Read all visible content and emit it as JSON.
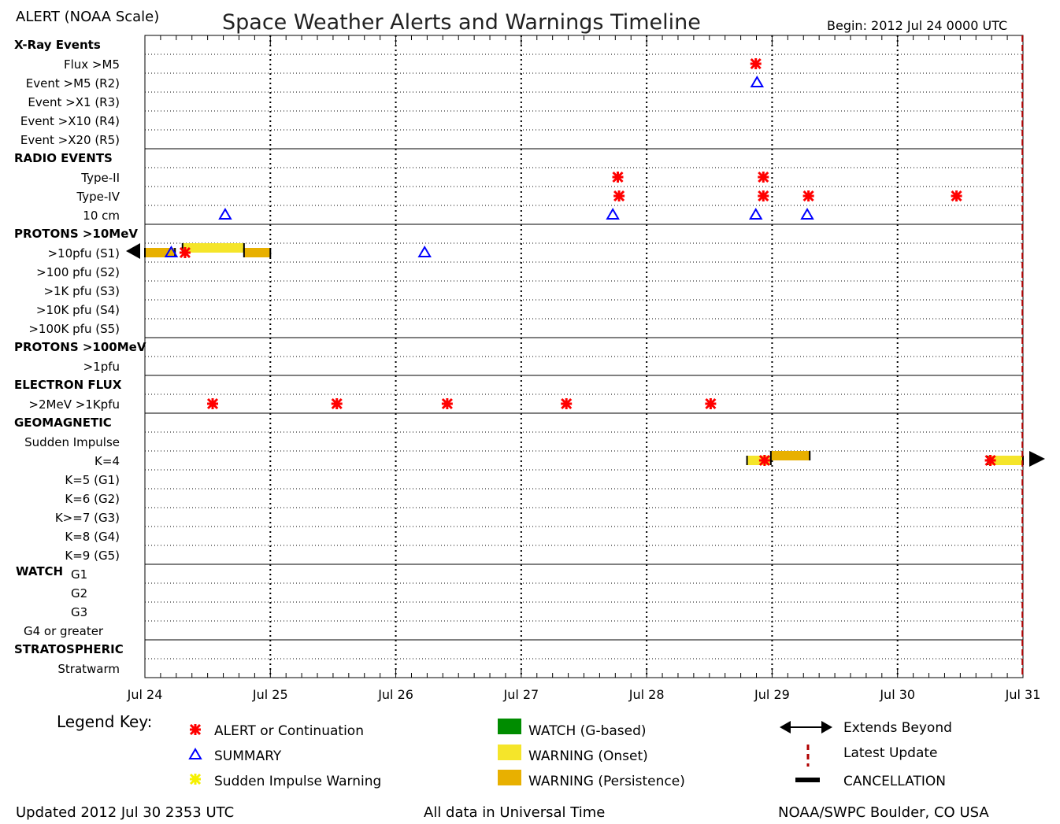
{
  "header": {
    "left_label": "ALERT (NOAA Scale)",
    "title": "Space Weather Alerts and Warnings Timeline",
    "begin": "Begin: 2012 Jul 24 0000 UTC"
  },
  "chart_data": {
    "type": "timeline",
    "x_axis": {
      "start": "2012-07-24 00:00",
      "end": "2012-07-31 00:00",
      "tick_labels": [
        "Jul 24",
        "Jul 25",
        "Jul 26",
        "Jul 27",
        "Jul 28",
        "Jul 29",
        "Jul 30",
        "Jul 31"
      ]
    },
    "latest_update": "2012-07-30 23:53",
    "sections": [
      {
        "header": "X-Ray Events",
        "rows": [
          "Flux >M5",
          "Event >M5 (R2)",
          "Event >X1 (R3)",
          "Event >X10 (R4)",
          "Event >X20 (R5)"
        ]
      },
      {
        "header": "RADIO EVENTS",
        "rows": [
          "Type-II",
          "Type-IV",
          "10 cm"
        ]
      },
      {
        "header": "PROTONS >10MeV",
        "rows": [
          ">10pfu (S1)",
          ">100 pfu (S2)",
          ">1K pfu (S3)",
          ">10K pfu (S4)",
          ">100K pfu (S5)"
        ]
      },
      {
        "header": "PROTONS >100MeV",
        "rows": [
          ">1pfu"
        ]
      },
      {
        "header": "ELECTRON FLUX",
        "rows": [
          ">2MeV >1Kpfu"
        ]
      },
      {
        "header": "GEOMAGNETIC",
        "rows": [
          "Sudden Impulse",
          "K=4",
          "K=5 (G1)",
          "K=6 (G2)",
          "K>=7 (G3)",
          "K=8 (G4)",
          "K=9 (G5)"
        ]
      },
      {
        "header": "WATCH",
        "rows": [
          "G1",
          "G2",
          "G3",
          "G4 or greater"
        ]
      },
      {
        "header": "STRATOSPHERIC",
        "rows": [
          "Stratwarm"
        ]
      }
    ],
    "events": [
      {
        "row": "Flux >M5",
        "type": "alert",
        "day": 4.87
      },
      {
        "row": "Event >M5 (R2)",
        "type": "summary",
        "day": 4.88
      },
      {
        "row": "Type-II",
        "type": "alert",
        "day": 3.77
      },
      {
        "row": "Type-II",
        "type": "alert",
        "day": 4.93
      },
      {
        "row": "Type-IV",
        "type": "alert",
        "day": 3.78
      },
      {
        "row": "Type-IV",
        "type": "alert",
        "day": 4.93
      },
      {
        "row": "Type-IV",
        "type": "alert",
        "day": 5.29
      },
      {
        "row": "Type-IV",
        "type": "alert",
        "day": 6.47
      },
      {
        "row": "10 cm",
        "type": "summary",
        "day": 0.64
      },
      {
        "row": "10 cm",
        "type": "summary",
        "day": 3.73
      },
      {
        "row": "10 cm",
        "type": "summary",
        "day": 4.87
      },
      {
        "row": "10 cm",
        "type": "summary",
        "day": 5.28
      },
      {
        "row": ">10pfu (S1)",
        "type": "summary",
        "day": 0.21
      },
      {
        "row": ">10pfu (S1)",
        "type": "alert",
        "day": 0.32
      },
      {
        "row": ">10pfu (S1)",
        "type": "summary",
        "day": 2.23
      },
      {
        "row": ">2MeV >1Kpfu",
        "type": "alert",
        "day": 0.54
      },
      {
        "row": ">2MeV >1Kpfu",
        "type": "alert",
        "day": 1.53
      },
      {
        "row": ">2MeV >1Kpfu",
        "type": "alert",
        "day": 2.41
      },
      {
        "row": ">2MeV >1Kpfu",
        "type": "alert",
        "day": 3.36
      },
      {
        "row": ">2MeV >1Kpfu",
        "type": "alert",
        "day": 4.51
      },
      {
        "row": "K=4",
        "type": "alert",
        "day": 4.94
      },
      {
        "row": "K=4",
        "type": "alert",
        "day": 6.74
      }
    ],
    "warnings": [
      {
        "row": ">10pfu (S1)",
        "kind": "persistence",
        "start": 0.0,
        "end": 0.24,
        "level": "low",
        "extends_before": true
      },
      {
        "row": ">10pfu (S1)",
        "kind": "onset",
        "start": 0.3,
        "end": 0.79,
        "level": "high"
      },
      {
        "row": ">10pfu (S1)",
        "kind": "persistence",
        "start": 0.79,
        "end": 1.0,
        "level": "low"
      },
      {
        "row": "K=4",
        "kind": "onset",
        "start": 4.8,
        "end": 4.99,
        "level": "low"
      },
      {
        "row": "K=4",
        "kind": "persistence",
        "start": 4.99,
        "end": 5.3,
        "level": "high"
      },
      {
        "row": "K=4",
        "kind": "onset",
        "start": 6.72,
        "end": 7.0,
        "level": "low",
        "extends_after": true
      }
    ]
  },
  "legend": {
    "title": "Legend Key:",
    "items": [
      {
        "symbol": "alert",
        "label": "ALERT or Continuation"
      },
      {
        "symbol": "summary",
        "label": "SUMMARY"
      },
      {
        "symbol": "sudden-impulse",
        "label": "Sudden Impulse Warning"
      },
      {
        "symbol": "watch",
        "label": "WATCH (G-based)"
      },
      {
        "symbol": "onset",
        "label": "WARNING (Onset)"
      },
      {
        "symbol": "persistence",
        "label": "WARNING (Persistence)"
      },
      {
        "symbol": "arrows",
        "label": "Extends Beyond"
      },
      {
        "symbol": "latest",
        "label": "Latest Update"
      },
      {
        "symbol": "cancel",
        "label": "CANCELLATION"
      }
    ]
  },
  "footer": {
    "updated": "Updated 2012 Jul 30 2353 UTC",
    "note": "All data in Universal Time",
    "source": "NOAA/SWPC Boulder, CO USA"
  },
  "colors": {
    "alert": "#ff0000",
    "summary": "#0000ff",
    "sudden_impulse": "#f5f000",
    "watch": "#008c00",
    "onset": "#f5e52a",
    "persistence": "#e8b000",
    "latest": "#b00000"
  }
}
